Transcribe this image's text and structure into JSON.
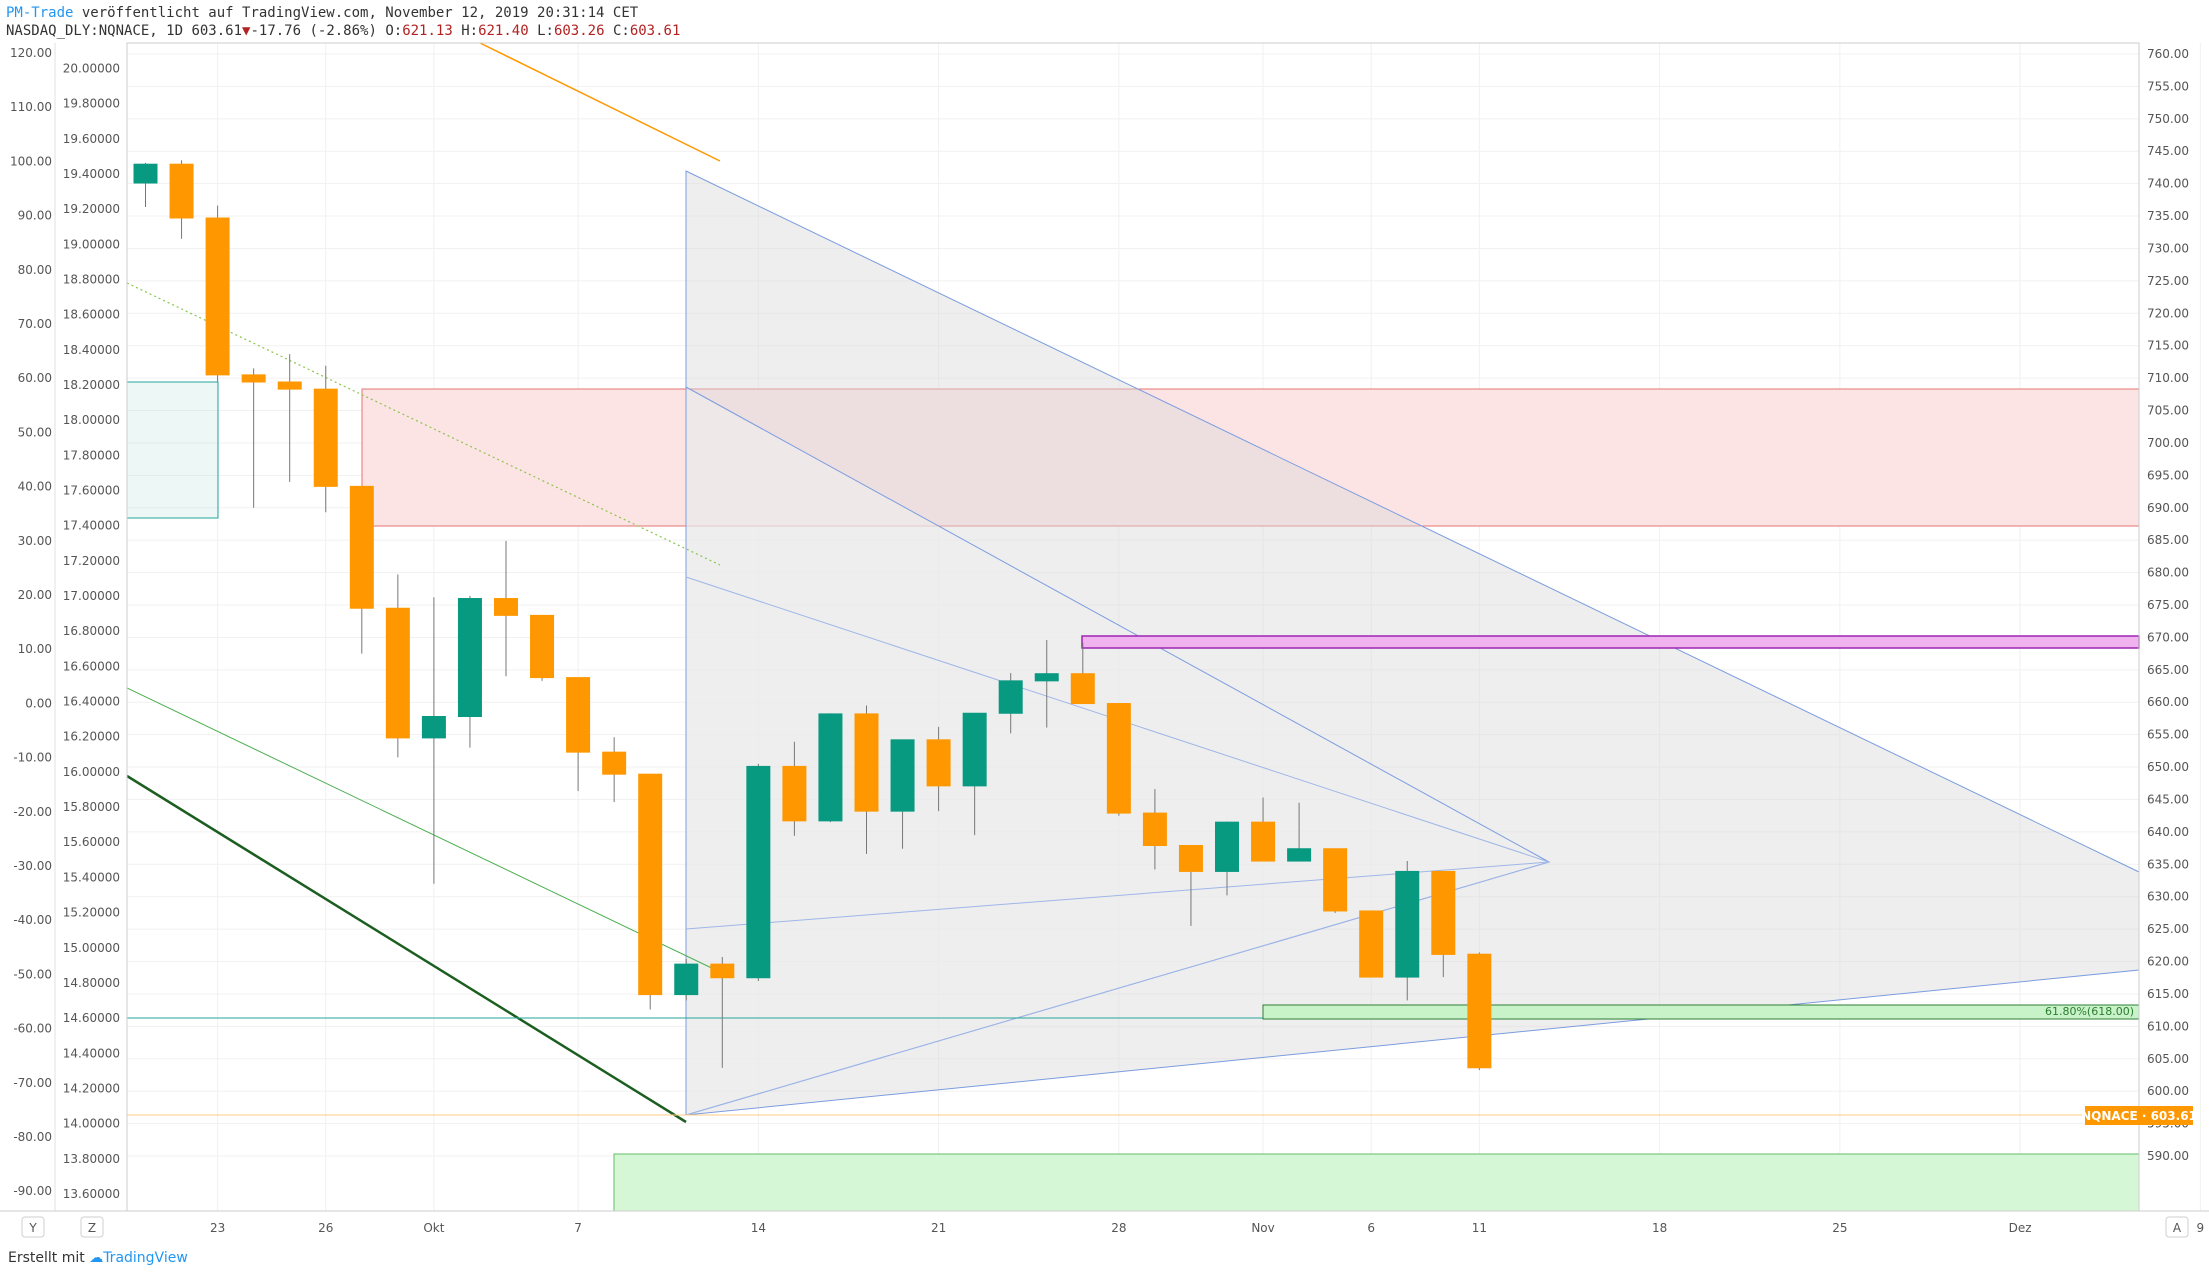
{
  "header": {
    "author": "PM-Trade",
    "published": "veröffentlicht auf TradingView.com, November 12, 2019 20:31:14 CET",
    "symbol": "NASDAQ_DLY:NQNACE, 1D",
    "last": "603.61",
    "change": "-17.76 (-2.86%)",
    "o_label": "O:",
    "o": "621.13",
    "h_label": "H:",
    "h": "621.40",
    "l_label": "L:",
    "l": "603.26",
    "c_label": "C:",
    "c": "603.61"
  },
  "footer": {
    "created": "Erstellt mit",
    "brand": "TradingView"
  },
  "colors": {
    "up": "#089981",
    "down": "#ff9800",
    "price_label_bg": "#ff9800",
    "header_link": "#2196f3",
    "ohlc": "#b22222"
  },
  "chart_data": {
    "type": "candlestick",
    "title": "NASDAQ_DLY:NQNACE, 1D",
    "xlabel": "",
    "ylabel": "",
    "x_ticks": [
      "23",
      "26",
      "Okt",
      "7",
      "14",
      "21",
      "28",
      "Nov",
      "6",
      "11",
      "18",
      "25",
      "Dez",
      "9"
    ],
    "y_right": {
      "ticks": [
        "760.00",
        "755.00",
        "750.00",
        "745.00",
        "740.00",
        "735.00",
        "730.00",
        "725.00",
        "720.00",
        "715.00",
        "710.00",
        "705.00",
        "700.00",
        "695.00",
        "690.00",
        "685.00",
        "680.00",
        "675.00",
        "670.00",
        "665.00",
        "660.00",
        "655.00",
        "650.00",
        "645.00",
        "640.00",
        "635.00",
        "630.00",
        "625.00",
        "620.00",
        "615.00",
        "610.00",
        "605.00",
        "600.00",
        "595.00",
        "590.00"
      ],
      "range": [
        589,
        761
      ]
    },
    "y_left_outer": {
      "ticks": [
        "120.00",
        "110.00",
        "100.00",
        "90.00",
        "80.00",
        "70.00",
        "60.00",
        "50.00",
        "40.00",
        "30.00",
        "20.00",
        "10.00",
        "0.00",
        "-10.00",
        "-20.00",
        "-30.00",
        "-40.00",
        "-50.00",
        "-60.00",
        "-70.00",
        "-80.00",
        "-90.00"
      ]
    },
    "y_left_inner": {
      "ticks": [
        "20.00000",
        "19.80000",
        "19.60000",
        "19.40000",
        "19.20000",
        "19.00000",
        "18.80000",
        "18.60000",
        "18.40000",
        "18.20000",
        "18.00000",
        "17.80000",
        "17.60000",
        "17.40000",
        "17.20000",
        "17.00000",
        "16.80000",
        "16.60000",
        "16.40000",
        "16.20000",
        "16.00000",
        "15.80000",
        "15.60000",
        "15.40000",
        "15.20000",
        "15.00000",
        "14.80000",
        "14.60000",
        "14.40000",
        "14.20000",
        "14.00000",
        "13.80000",
        "13.60000"
      ]
    },
    "candles": [
      {
        "date": "2019-09-19",
        "o": 740.1,
        "h": 743.2,
        "l": 736.4,
        "c": 743.0
      },
      {
        "date": "2019-09-20",
        "o": 743.0,
        "h": 743.6,
        "l": 731.5,
        "c": 734.7
      },
      {
        "date": "2019-09-23",
        "o": 734.7,
        "h": 736.6,
        "l": 709.5,
        "c": 710.5
      },
      {
        "date": "2019-09-24",
        "o": 710.5,
        "h": 711.5,
        "l": 690.0,
        "c": 709.4
      },
      {
        "date": "2019-09-25",
        "o": 709.4,
        "h": 713.7,
        "l": 694.0,
        "c": 708.3
      },
      {
        "date": "2019-09-26",
        "o": 708.3,
        "h": 711.9,
        "l": 689.3,
        "c": 693.3
      },
      {
        "date": "2019-09-27",
        "o": 693.3,
        "h": 693.3,
        "l": 667.5,
        "c": 674.5
      },
      {
        "date": "2019-09-30",
        "o": 674.5,
        "h": 679.7,
        "l": 651.5,
        "c": 654.5
      },
      {
        "date": "2019-10-01",
        "o": 654.5,
        "h": 676.2,
        "l": 632.0,
        "c": 657.8
      },
      {
        "date": "2019-10-02",
        "o": 657.8,
        "h": 676.4,
        "l": 653.0,
        "c": 676.0
      },
      {
        "date": "2019-10-03",
        "o": 676.0,
        "h": 684.9,
        "l": 664.0,
        "c": 673.4
      },
      {
        "date": "2019-10-04",
        "o": 673.4,
        "h": 673.4,
        "l": 663.3,
        "c": 663.8
      },
      {
        "date": "2019-10-07",
        "o": 663.8,
        "h": 663.8,
        "l": 646.3,
        "c": 652.3
      },
      {
        "date": "2019-10-08",
        "o": 652.3,
        "h": 654.6,
        "l": 644.6,
        "c": 648.9
      },
      {
        "date": "2019-10-09",
        "o": 648.9,
        "h": 648.9,
        "l": 612.6,
        "c": 614.9
      },
      {
        "date": "2019-10-10",
        "o": 614.9,
        "h": 620.4,
        "l": 614.0,
        "c": 619.6
      },
      {
        "date": "2019-10-11",
        "o": 619.6,
        "h": 620.7,
        "l": 603.6,
        "c": 617.5
      },
      {
        "date": "2019-10-14",
        "o": 617.5,
        "h": 650.5,
        "l": 617.0,
        "c": 650.1
      },
      {
        "date": "2019-10-15",
        "o": 650.1,
        "h": 653.9,
        "l": 639.4,
        "c": 641.7
      },
      {
        "date": "2019-10-16",
        "o": 641.7,
        "h": 658.3,
        "l": 641.5,
        "c": 658.2
      },
      {
        "date": "2019-10-17",
        "o": 658.2,
        "h": 659.5,
        "l": 636.6,
        "c": 643.2
      },
      {
        "date": "2019-10-18",
        "o": 643.2,
        "h": 653.8,
        "l": 637.4,
        "c": 654.2
      },
      {
        "date": "2019-10-21",
        "o": 654.2,
        "h": 656.2,
        "l": 643.2,
        "c": 647.1
      },
      {
        "date": "2019-10-22",
        "o": 647.1,
        "h": 658.3,
        "l": 639.5,
        "c": 658.3
      },
      {
        "date": "2019-10-23",
        "o": 658.3,
        "h": 664.5,
        "l": 655.2,
        "c": 663.3
      },
      {
        "date": "2019-10-24",
        "o": 663.3,
        "h": 669.6,
        "l": 656.1,
        "c": 664.4
      },
      {
        "date": "2019-10-25",
        "o": 664.4,
        "h": 669.2,
        "l": 659.8,
        "c": 659.8
      },
      {
        "date": "2019-10-28",
        "o": 659.8,
        "h": 659.8,
        "l": 642.5,
        "c": 642.9
      },
      {
        "date": "2019-10-29",
        "o": 642.9,
        "h": 646.6,
        "l": 634.2,
        "c": 637.9
      },
      {
        "date": "2019-10-30",
        "o": 637.9,
        "h": 637.9,
        "l": 625.5,
        "c": 633.9
      },
      {
        "date": "2019-10-31",
        "o": 633.9,
        "h": 641.6,
        "l": 630.2,
        "c": 641.5
      },
      {
        "date": "2019-11-01",
        "o": 641.5,
        "h": 645.3,
        "l": 635.5,
        "c": 635.5
      },
      {
        "date": "2019-11-04",
        "o": 635.5,
        "h": 644.5,
        "l": 635.5,
        "c": 637.4
      },
      {
        "date": "2019-11-05",
        "o": 637.4,
        "h": 637.4,
        "l": 627.5,
        "c": 627.8
      },
      {
        "date": "2019-11-06",
        "o": 627.8,
        "h": 627.8,
        "l": 617.6,
        "c": 617.6
      },
      {
        "date": "2019-11-07",
        "o": 617.6,
        "h": 635.5,
        "l": 614.0,
        "c": 633.9
      },
      {
        "date": "2019-11-08",
        "o": 633.9,
        "h": 633.9,
        "l": 617.6,
        "c": 621.1
      },
      {
        "date": "2019-11-11",
        "o": 621.13,
        "h": 621.4,
        "l": 603.26,
        "c": 603.61
      }
    ],
    "annotations": {
      "fib_label": "61.80%(618.00)",
      "price_label": "NQNACE · 603.61",
      "zones": [
        {
          "type": "resistance",
          "from": 690.5,
          "to": 710.5,
          "color": "#f7a8a8"
        },
        {
          "type": "magenta",
          "from": 671.5,
          "to": 673.5,
          "color": "#cc33cc"
        },
        {
          "type": "support_fib",
          "from": 618.0,
          "to": 619.8,
          "color": "#4caf50"
        },
        {
          "type": "support",
          "from": 589.0,
          "to": 597.5,
          "color": "#4caf50"
        }
      ]
    }
  },
  "bottom_bar": {
    "left_buttons": [
      "Y",
      "Z"
    ],
    "right_button": "A"
  }
}
